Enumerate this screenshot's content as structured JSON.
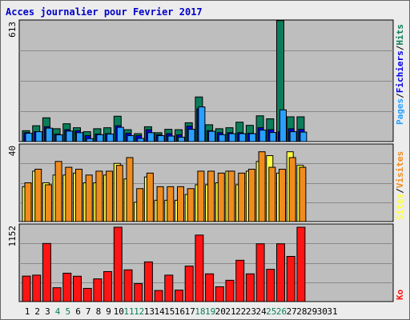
{
  "title": "Acces journalier pour Fevrier 2017",
  "colors": {
    "pages": "#28a0ff",
    "fichiers": "#0000e6",
    "hits": "#0b7d5a",
    "visites": "#f08c1e",
    "sites": "#ffff40",
    "ko": "#ff1414",
    "weekend_label": "#0b7d5a",
    "weekday_label": "#000000",
    "panel_bg": "#bebebe"
  },
  "chart_data": [
    {
      "type": "bar",
      "panel": "top",
      "ymax_label": "613",
      "ylim": [
        0,
        613
      ],
      "legend": {
        "pages": "Pages",
        "sep1": "/",
        "fichiers": "Fichiers",
        "sep2": "/",
        "hits": "Hits"
      },
      "categories": [
        "1",
        "2",
        "3",
        "4",
        "5",
        "6",
        "7",
        "8",
        "9",
        "10",
        "11",
        "12",
        "13",
        "14",
        "15",
        "16",
        "17",
        "18",
        "19",
        "20",
        "21",
        "22",
        "23",
        "24",
        "25",
        "26",
        "27",
        "28",
        "29",
        "30",
        "31"
      ],
      "weekend_days": [
        "4",
        "5",
        "11",
        "12",
        "18",
        "19",
        "25",
        "26"
      ],
      "series": [
        {
          "name": "Hits",
          "values": [
            55,
            80,
            120,
            65,
            90,
            70,
            50,
            65,
            70,
            128,
            60,
            40,
            75,
            45,
            62,
            60,
            95,
            225,
            85,
            65,
            70,
            98,
            82,
            130,
            115,
            610,
            125,
            125,
            0,
            0,
            0
          ]
        },
        {
          "name": "Fichiers",
          "values": [
            45,
            50,
            75,
            38,
            60,
            55,
            30,
            38,
            40,
            80,
            42,
            30,
            60,
            35,
            40,
            34,
            78,
            165,
            55,
            45,
            45,
            45,
            42,
            70,
            60,
            50,
            65,
            62,
            0,
            0,
            0
          ]
        },
        {
          "name": "Pages",
          "values": [
            42,
            50,
            68,
            34,
            53,
            45,
            15,
            35,
            38,
            72,
            30,
            16,
            45,
            30,
            28,
            22,
            62,
            175,
            52,
            35,
            40,
            40,
            40,
            58,
            46,
            160,
            50,
            48,
            0,
            0,
            0
          ]
        }
      ]
    },
    {
      "type": "bar",
      "panel": "middle",
      "ymax_label": "40",
      "ylim": [
        0,
        40
      ],
      "legend": {
        "sites": "Sites",
        "sep": "/",
        "visites": "Visites"
      },
      "categories": [
        "1",
        "2",
        "3",
        "4",
        "5",
        "6",
        "7",
        "8",
        "9",
        "10",
        "11",
        "12",
        "13",
        "14",
        "15",
        "16",
        "17",
        "18",
        "19",
        "20",
        "21",
        "22",
        "23",
        "24",
        "25",
        "26",
        "27",
        "28",
        "29",
        "30",
        "31"
      ],
      "series": [
        {
          "name": "Sites",
          "values": [
            18,
            26,
            20,
            24,
            24,
            25,
            20,
            20,
            24,
            30,
            22,
            10,
            23,
            11,
            11,
            11,
            14,
            19,
            19,
            20,
            26,
            19,
            26,
            31,
            34,
            25,
            36,
            29,
            0,
            0,
            0
          ]
        },
        {
          "name": "Visites",
          "values": [
            20,
            27,
            19,
            31,
            28,
            27,
            24,
            26,
            26,
            29,
            33,
            17,
            25,
            18,
            18,
            18,
            17,
            26,
            26,
            25,
            26,
            25,
            27,
            36,
            28,
            27,
            33,
            28,
            0,
            0,
            0
          ]
        }
      ]
    },
    {
      "type": "bar",
      "panel": "bottom",
      "ymax_label": "1152",
      "ylim": [
        0,
        1152
      ],
      "legend": {
        "ko": "Ko"
      },
      "categories": [
        "1",
        "2",
        "3",
        "4",
        "5",
        "6",
        "7",
        "8",
        "9",
        "10",
        "11",
        "12",
        "13",
        "14",
        "15",
        "16",
        "17",
        "18",
        "19",
        "20",
        "21",
        "22",
        "23",
        "24",
        "25",
        "26",
        "27",
        "28",
        "29",
        "30",
        "31"
      ],
      "series": [
        {
          "name": "Ko",
          "values": [
            395,
            410,
            900,
            215,
            440,
            393,
            205,
            352,
            465,
            1152,
            492,
            278,
            615,
            172,
            410,
            178,
            550,
            1030,
            430,
            230,
            330,
            640,
            430,
            895,
            500,
            895,
            700,
            1152,
            0,
            0,
            0
          ]
        }
      ]
    }
  ]
}
